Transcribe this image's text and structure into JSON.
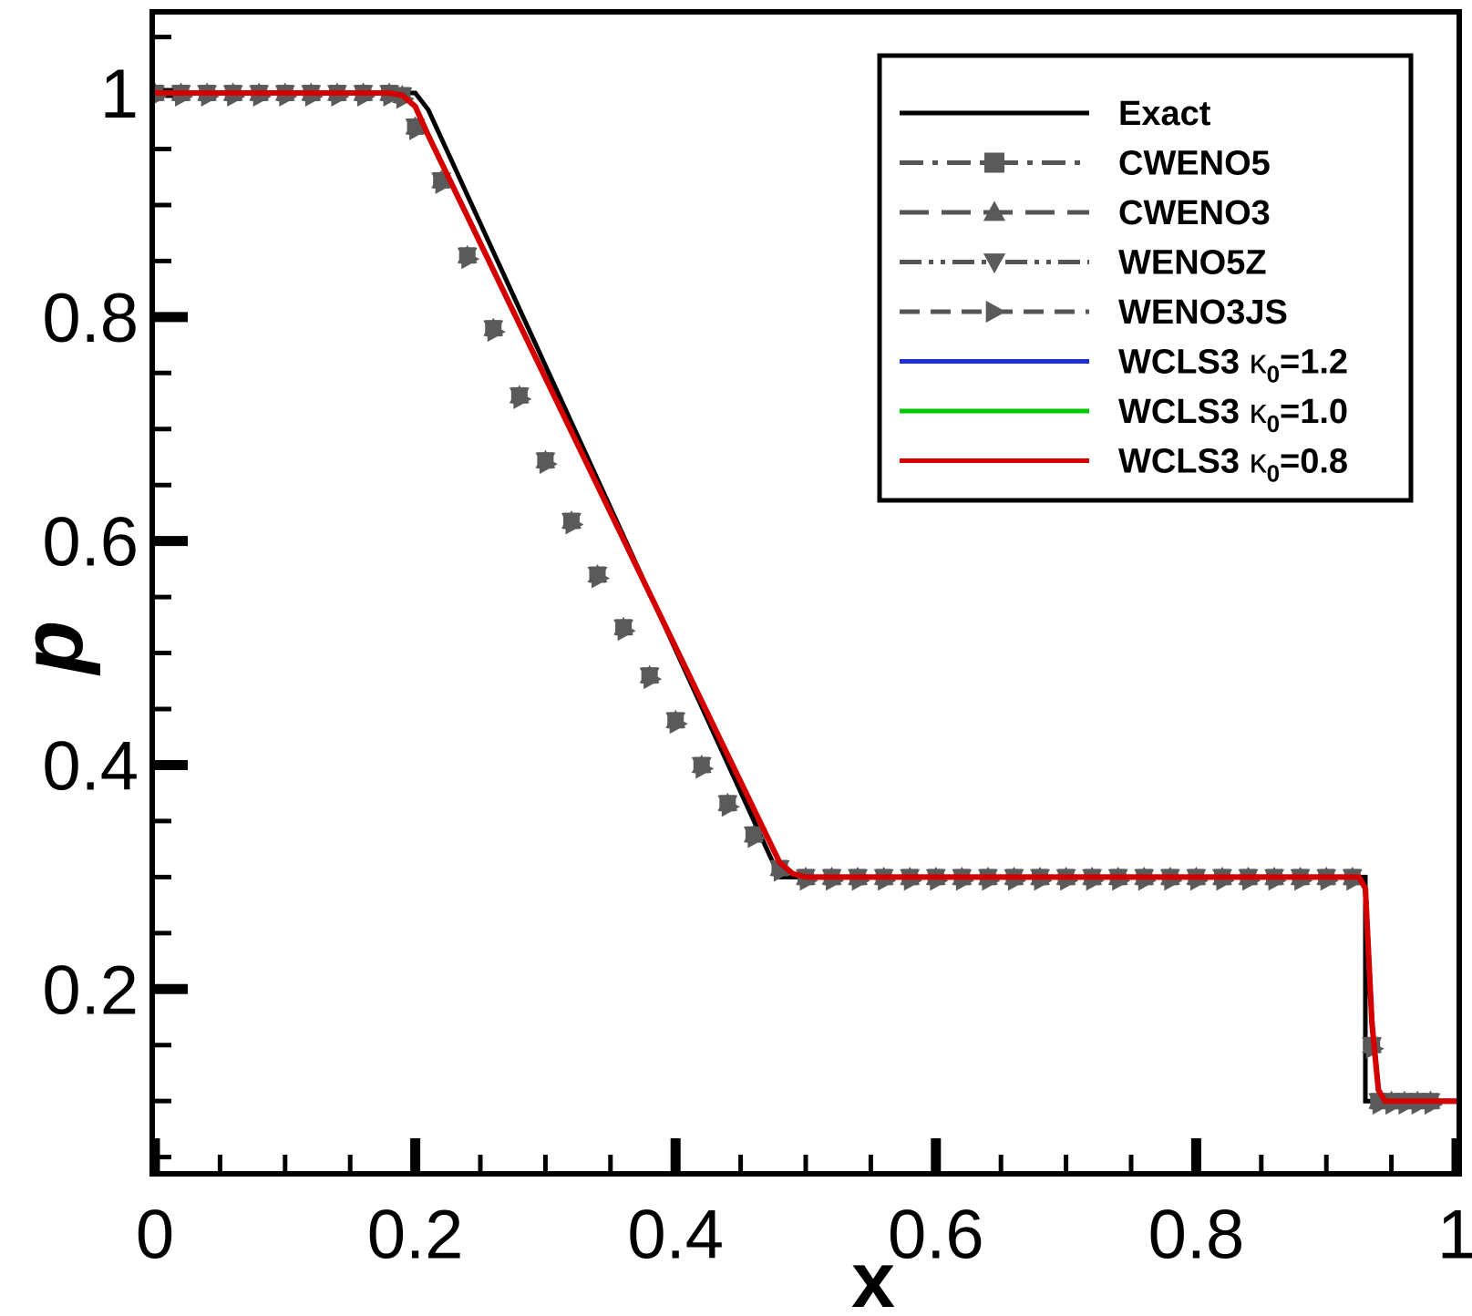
{
  "chart_data": {
    "type": "line",
    "title": "",
    "xlabel": "x",
    "ylabel": "p",
    "xlim": [
      0,
      1
    ],
    "ylim": [
      0.0375,
      1.07
    ],
    "grid": false,
    "legend_position": "top-right",
    "x_ticks": [
      {
        "value": 0,
        "label": "0"
      },
      {
        "value": 0.2,
        "label": "0.2"
      },
      {
        "value": 0.4,
        "label": "0.4"
      },
      {
        "value": 0.6,
        "label": "0.6"
      },
      {
        "value": 0.8,
        "label": "0.8"
      },
      {
        "value": 1,
        "label": "1"
      }
    ],
    "y_ticks": [
      {
        "value": 0.2,
        "label": "0.2"
      },
      {
        "value": 0.4,
        "label": "0.4"
      },
      {
        "value": 0.6,
        "label": "0.6"
      },
      {
        "value": 0.8,
        "label": "0.8"
      },
      {
        "value": 1,
        "label": "1"
      }
    ],
    "series": [
      {
        "name": "Exact",
        "label": "Exact",
        "color": "#000000",
        "dash": "solid",
        "marker": "none",
        "x": [
          0,
          0.2,
          0.21,
          0.48,
          0.93,
          0.93,
          1.0
        ],
        "y": [
          1.0,
          1.0,
          0.985,
          0.3,
          0.3,
          0.1,
          0.1
        ]
      },
      {
        "name": "CWENO5",
        "label": "CWENO5",
        "color": "#555555",
        "dash": "dashdot",
        "marker": "square"
      },
      {
        "name": "CWENO3",
        "label": "CWENO3",
        "color": "#555555",
        "dash": "longdash",
        "marker": "triangle-up"
      },
      {
        "name": "WENO5Z",
        "label": "WENO5Z",
        "color": "#555555",
        "dash": "dashdotdot",
        "marker": "triangle-down"
      },
      {
        "name": "WENO3JS",
        "label": "WENO3JS",
        "color": "#555555",
        "dash": "dash",
        "marker": "triangle-right"
      },
      {
        "name": "WCLS3 k0=1.2",
        "label_main": "WCLS3 ",
        "label_symbol": "κ",
        "label_sub": "0",
        "label_tail": "=1.2",
        "color": "#1f2fd6",
        "dash": "solid",
        "marker": "none"
      },
      {
        "name": "WCLS3 k0=1.0",
        "label_main": "WCLS3 ",
        "label_symbol": "κ",
        "label_sub": "0",
        "label_tail": "=1.0",
        "color": "#00c800",
        "dash": "solid",
        "marker": "none"
      },
      {
        "name": "WCLS3 k0=0.8",
        "label_main": "WCLS3 ",
        "label_symbol": "κ",
        "label_sub": "0",
        "label_tail": "=0.8",
        "color": "#d40000",
        "dash": "solid",
        "marker": "none",
        "x": [
          0,
          0.18,
          0.19,
          0.2,
          0.21,
          0.48,
          0.49,
          0.5,
          0.925,
          0.93,
          0.935,
          0.94,
          0.945,
          1.0
        ],
        "y": [
          1.0,
          1.0,
          0.998,
          0.988,
          0.962,
          0.313,
          0.303,
          0.3,
          0.3,
          0.29,
          0.17,
          0.11,
          0.1,
          0.1
        ]
      }
    ],
    "marker_points": {
      "x": [
        0,
        0.02,
        0.04,
        0.06,
        0.08,
        0.1,
        0.12,
        0.14,
        0.16,
        0.18,
        0.19,
        0.2,
        0.22,
        0.24,
        0.26,
        0.28,
        0.3,
        0.32,
        0.34,
        0.36,
        0.38,
        0.4,
        0.42,
        0.44,
        0.46,
        0.48,
        0.5,
        0.52,
        0.54,
        0.56,
        0.58,
        0.6,
        0.62,
        0.64,
        0.66,
        0.68,
        0.7,
        0.72,
        0.74,
        0.76,
        0.78,
        0.8,
        0.82,
        0.84,
        0.86,
        0.88,
        0.9,
        0.92,
        0.935,
        0.94,
        0.95,
        0.96,
        0.97,
        0.98
      ],
      "y": [
        1.0,
        1.0,
        1.0,
        1.0,
        1.0,
        1.0,
        1.0,
        1.0,
        1.0,
        1.0,
        0.998,
        0.97,
        0.922,
        0.855,
        0.79,
        0.73,
        0.672,
        0.618,
        0.57,
        0.523,
        0.48,
        0.44,
        0.4,
        0.366,
        0.338,
        0.308,
        0.3,
        0.3,
        0.3,
        0.3,
        0.3,
        0.3,
        0.3,
        0.3,
        0.3,
        0.3,
        0.3,
        0.3,
        0.3,
        0.3,
        0.3,
        0.3,
        0.3,
        0.3,
        0.3,
        0.3,
        0.3,
        0.3,
        0.15,
        0.1,
        0.1,
        0.1,
        0.1,
        0.1
      ]
    }
  }
}
